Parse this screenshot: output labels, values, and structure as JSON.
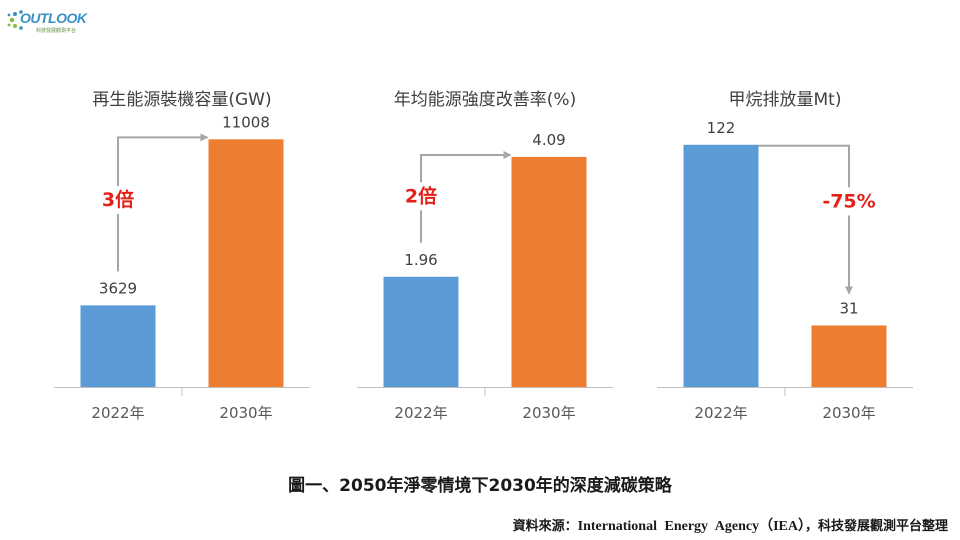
{
  "logo": {
    "word": "OUTLOOK",
    "sub": "科技發展觀測平台"
  },
  "caption": "圖一、2050年淨零情境下2030年的深度減碳策略",
  "source": {
    "prefix": "資料來源：",
    "org": "International Energy Agency（IEA）",
    "suffix": "，科技發展觀測平台整理"
  },
  "colors": {
    "2022": "#5b9bd5",
    "2030": "#ed7d31",
    "annotation": "#e32119",
    "arrow": "#a6a6a6"
  },
  "chart_data": [
    {
      "type": "bar",
      "title": "再生能源裝機容量(GW)",
      "categories": [
        "2022年",
        "2030年"
      ],
      "values": [
        3629,
        11008
      ],
      "labels": [
        "3629",
        "11008"
      ],
      "annotation": "3倍",
      "ylim": [
        0,
        12000
      ],
      "grid": false
    },
    {
      "type": "bar",
      "title": "年均能源強度改善率(%)",
      "categories": [
        "2022年",
        "2030年"
      ],
      "values": [
        1.96,
        4.09
      ],
      "labels": [
        "1.96",
        "4.09"
      ],
      "annotation": "2倍",
      "ylim": [
        0,
        4.8
      ],
      "grid": false
    },
    {
      "type": "bar",
      "title": "甲烷排放量Mt)",
      "categories": [
        "2022年",
        "2030年"
      ],
      "values": [
        122,
        31
      ],
      "labels": [
        "122",
        "31"
      ],
      "annotation": "-75%",
      "ylim": [
        0,
        136
      ],
      "grid": false
    }
  ]
}
